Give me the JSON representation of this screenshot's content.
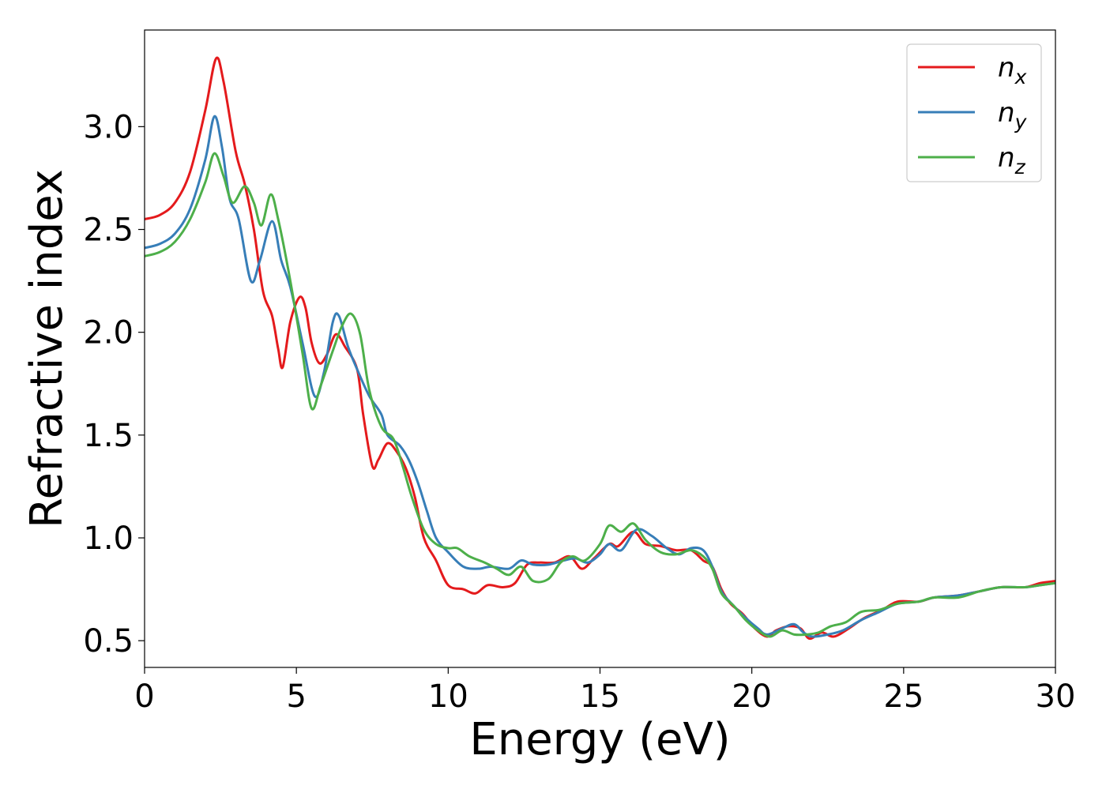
{
  "chart_data": {
    "type": "line",
    "title": "",
    "xlabel": "Energy (eV)",
    "ylabel": "Refractive index",
    "xlim": [
      0,
      30
    ],
    "ylim": [
      0.37,
      3.47
    ],
    "xticks": [
      0,
      5,
      10,
      15,
      20,
      25,
      30
    ],
    "xtick_labels": [
      "0",
      "5",
      "10",
      "15",
      "20",
      "25",
      "30"
    ],
    "yticks": [
      0.5,
      1.0,
      1.5,
      2.0,
      2.5,
      3.0
    ],
    "ytick_labels": [
      "0.5",
      "1.0",
      "1.5",
      "2.0",
      "2.5",
      "3.0"
    ],
    "grid": false,
    "legend_position": "top-right",
    "series": [
      {
        "name": "n_x",
        "legend_main": "n",
        "legend_sub": "x",
        "color": "#e41a1c",
        "points": [
          [
            0,
            2.55
          ],
          [
            0.5,
            2.57
          ],
          [
            1.0,
            2.63
          ],
          [
            1.5,
            2.78
          ],
          [
            2.0,
            3.08
          ],
          [
            2.35,
            3.33
          ],
          [
            2.6,
            3.22
          ],
          [
            3.0,
            2.88
          ],
          [
            3.3,
            2.72
          ],
          [
            3.6,
            2.5
          ],
          [
            3.9,
            2.2
          ],
          [
            4.2,
            2.08
          ],
          [
            4.4,
            1.92
          ],
          [
            4.55,
            1.83
          ],
          [
            4.8,
            2.05
          ],
          [
            5.1,
            2.17
          ],
          [
            5.3,
            2.12
          ],
          [
            5.5,
            1.95
          ],
          [
            5.75,
            1.85
          ],
          [
            6.0,
            1.89
          ],
          [
            6.3,
            1.99
          ],
          [
            6.6,
            1.93
          ],
          [
            7.0,
            1.82
          ],
          [
            7.2,
            1.6
          ],
          [
            7.5,
            1.35
          ],
          [
            7.7,
            1.38
          ],
          [
            8.0,
            1.46
          ],
          [
            8.3,
            1.42
          ],
          [
            8.6,
            1.34
          ],
          [
            8.9,
            1.2
          ],
          [
            9.2,
            1.0
          ],
          [
            9.6,
            0.89
          ],
          [
            10.0,
            0.77
          ],
          [
            10.5,
            0.75
          ],
          [
            10.9,
            0.73
          ],
          [
            11.3,
            0.77
          ],
          [
            11.8,
            0.76
          ],
          [
            12.2,
            0.78
          ],
          [
            12.6,
            0.87
          ],
          [
            13.0,
            0.88
          ],
          [
            13.5,
            0.88
          ],
          [
            14.0,
            0.91
          ],
          [
            14.4,
            0.85
          ],
          [
            14.8,
            0.9
          ],
          [
            15.3,
            0.97
          ],
          [
            15.6,
            0.96
          ],
          [
            16.1,
            1.03
          ],
          [
            16.5,
            0.97
          ],
          [
            17.0,
            0.96
          ],
          [
            17.5,
            0.94
          ],
          [
            18.0,
            0.94
          ],
          [
            18.4,
            0.89
          ],
          [
            18.7,
            0.86
          ],
          [
            19.0,
            0.75
          ],
          [
            19.3,
            0.68
          ],
          [
            19.7,
            0.63
          ],
          [
            20.1,
            0.56
          ],
          [
            20.5,
            0.52
          ],
          [
            20.8,
            0.55
          ],
          [
            21.2,
            0.57
          ],
          [
            21.6,
            0.56
          ],
          [
            21.9,
            0.51
          ],
          [
            22.3,
            0.54
          ],
          [
            22.7,
            0.52
          ],
          [
            23.2,
            0.56
          ],
          [
            23.7,
            0.61
          ],
          [
            24.3,
            0.65
          ],
          [
            24.8,
            0.69
          ],
          [
            25.5,
            0.69
          ],
          [
            26.0,
            0.71
          ],
          [
            26.8,
            0.72
          ],
          [
            27.5,
            0.74
          ],
          [
            28.2,
            0.76
          ],
          [
            29.0,
            0.76
          ],
          [
            29.5,
            0.78
          ],
          [
            30.0,
            0.79
          ]
        ]
      },
      {
        "name": "n_y",
        "legend_main": "n",
        "legend_sub": "y",
        "color": "#377eb8",
        "points": [
          [
            0,
            2.41
          ],
          [
            0.5,
            2.43
          ],
          [
            1.0,
            2.48
          ],
          [
            1.5,
            2.6
          ],
          [
            2.0,
            2.84
          ],
          [
            2.3,
            3.05
          ],
          [
            2.55,
            2.9
          ],
          [
            2.8,
            2.65
          ],
          [
            3.1,
            2.55
          ],
          [
            3.5,
            2.25
          ],
          [
            3.8,
            2.35
          ],
          [
            4.2,
            2.54
          ],
          [
            4.5,
            2.35
          ],
          [
            4.8,
            2.22
          ],
          [
            5.2,
            1.95
          ],
          [
            5.6,
            1.69
          ],
          [
            5.9,
            1.8
          ],
          [
            6.2,
            2.05
          ],
          [
            6.4,
            2.08
          ],
          [
            6.7,
            1.93
          ],
          [
            7.0,
            1.82
          ],
          [
            7.4,
            1.69
          ],
          [
            7.8,
            1.6
          ],
          [
            8.0,
            1.5
          ],
          [
            8.4,
            1.45
          ],
          [
            8.7,
            1.38
          ],
          [
            9.0,
            1.27
          ],
          [
            9.3,
            1.13
          ],
          [
            9.6,
            1.0
          ],
          [
            10.0,
            0.93
          ],
          [
            10.5,
            0.86
          ],
          [
            11.0,
            0.85
          ],
          [
            11.4,
            0.86
          ],
          [
            12.0,
            0.85
          ],
          [
            12.4,
            0.89
          ],
          [
            12.8,
            0.87
          ],
          [
            13.3,
            0.87
          ],
          [
            13.8,
            0.89
          ],
          [
            14.2,
            0.9
          ],
          [
            14.6,
            0.88
          ],
          [
            15.0,
            0.92
          ],
          [
            15.3,
            0.97
          ],
          [
            15.7,
            0.94
          ],
          [
            16.2,
            1.04
          ],
          [
            16.7,
            1.01
          ],
          [
            17.2,
            0.95
          ],
          [
            17.6,
            0.92
          ],
          [
            18.0,
            0.95
          ],
          [
            18.4,
            0.94
          ],
          [
            18.7,
            0.86
          ],
          [
            19.0,
            0.74
          ],
          [
            19.4,
            0.67
          ],
          [
            19.8,
            0.61
          ],
          [
            20.2,
            0.56
          ],
          [
            20.5,
            0.53
          ],
          [
            21.0,
            0.56
          ],
          [
            21.4,
            0.58
          ],
          [
            21.7,
            0.54
          ],
          [
            22.0,
            0.52
          ],
          [
            22.5,
            0.53
          ],
          [
            23.0,
            0.55
          ],
          [
            23.6,
            0.6
          ],
          [
            24.2,
            0.64
          ],
          [
            24.8,
            0.68
          ],
          [
            25.5,
            0.69
          ],
          [
            26.0,
            0.71
          ],
          [
            26.8,
            0.72
          ],
          [
            27.5,
            0.74
          ],
          [
            28.2,
            0.76
          ],
          [
            29.0,
            0.76
          ],
          [
            29.5,
            0.77
          ],
          [
            30.0,
            0.78
          ]
        ]
      },
      {
        "name": "n_z",
        "legend_main": "n",
        "legend_sub": "z",
        "color": "#4daf4a",
        "points": [
          [
            0,
            2.37
          ],
          [
            0.5,
            2.39
          ],
          [
            1.0,
            2.44
          ],
          [
            1.5,
            2.55
          ],
          [
            2.0,
            2.73
          ],
          [
            2.3,
            2.87
          ],
          [
            2.6,
            2.76
          ],
          [
            2.9,
            2.63
          ],
          [
            3.3,
            2.71
          ],
          [
            3.6,
            2.63
          ],
          [
            3.85,
            2.52
          ],
          [
            4.15,
            2.67
          ],
          [
            4.4,
            2.55
          ],
          [
            4.8,
            2.25
          ],
          [
            5.2,
            1.9
          ],
          [
            5.5,
            1.63
          ],
          [
            5.8,
            1.74
          ],
          [
            6.2,
            1.91
          ],
          [
            6.5,
            2.03
          ],
          [
            6.8,
            2.09
          ],
          [
            7.1,
            1.99
          ],
          [
            7.4,
            1.72
          ],
          [
            7.8,
            1.54
          ],
          [
            8.2,
            1.48
          ],
          [
            8.5,
            1.35
          ],
          [
            8.8,
            1.2
          ],
          [
            9.2,
            1.04
          ],
          [
            9.6,
            0.97
          ],
          [
            10.0,
            0.95
          ],
          [
            10.3,
            0.95
          ],
          [
            10.7,
            0.91
          ],
          [
            11.2,
            0.88
          ],
          [
            11.6,
            0.85
          ],
          [
            12.0,
            0.82
          ],
          [
            12.4,
            0.86
          ],
          [
            12.8,
            0.79
          ],
          [
            13.3,
            0.8
          ],
          [
            13.7,
            0.88
          ],
          [
            14.1,
            0.91
          ],
          [
            14.5,
            0.89
          ],
          [
            15.0,
            0.97
          ],
          [
            15.3,
            1.06
          ],
          [
            15.7,
            1.03
          ],
          [
            16.1,
            1.07
          ],
          [
            16.5,
            0.99
          ],
          [
            17.0,
            0.93
          ],
          [
            17.5,
            0.92
          ],
          [
            18.0,
            0.94
          ],
          [
            18.4,
            0.91
          ],
          [
            18.7,
            0.85
          ],
          [
            19.0,
            0.73
          ],
          [
            19.4,
            0.67
          ],
          [
            19.8,
            0.6
          ],
          [
            20.2,
            0.55
          ],
          [
            20.6,
            0.52
          ],
          [
            21.0,
            0.55
          ],
          [
            21.4,
            0.53
          ],
          [
            21.8,
            0.53
          ],
          [
            22.2,
            0.54
          ],
          [
            22.6,
            0.57
          ],
          [
            23.1,
            0.59
          ],
          [
            23.6,
            0.64
          ],
          [
            24.2,
            0.65
          ],
          [
            24.8,
            0.68
          ],
          [
            25.5,
            0.69
          ],
          [
            26.0,
            0.71
          ],
          [
            26.8,
            0.71
          ],
          [
            27.5,
            0.74
          ],
          [
            28.2,
            0.76
          ],
          [
            29.0,
            0.76
          ],
          [
            29.5,
            0.77
          ],
          [
            30.0,
            0.78
          ]
        ]
      }
    ]
  }
}
